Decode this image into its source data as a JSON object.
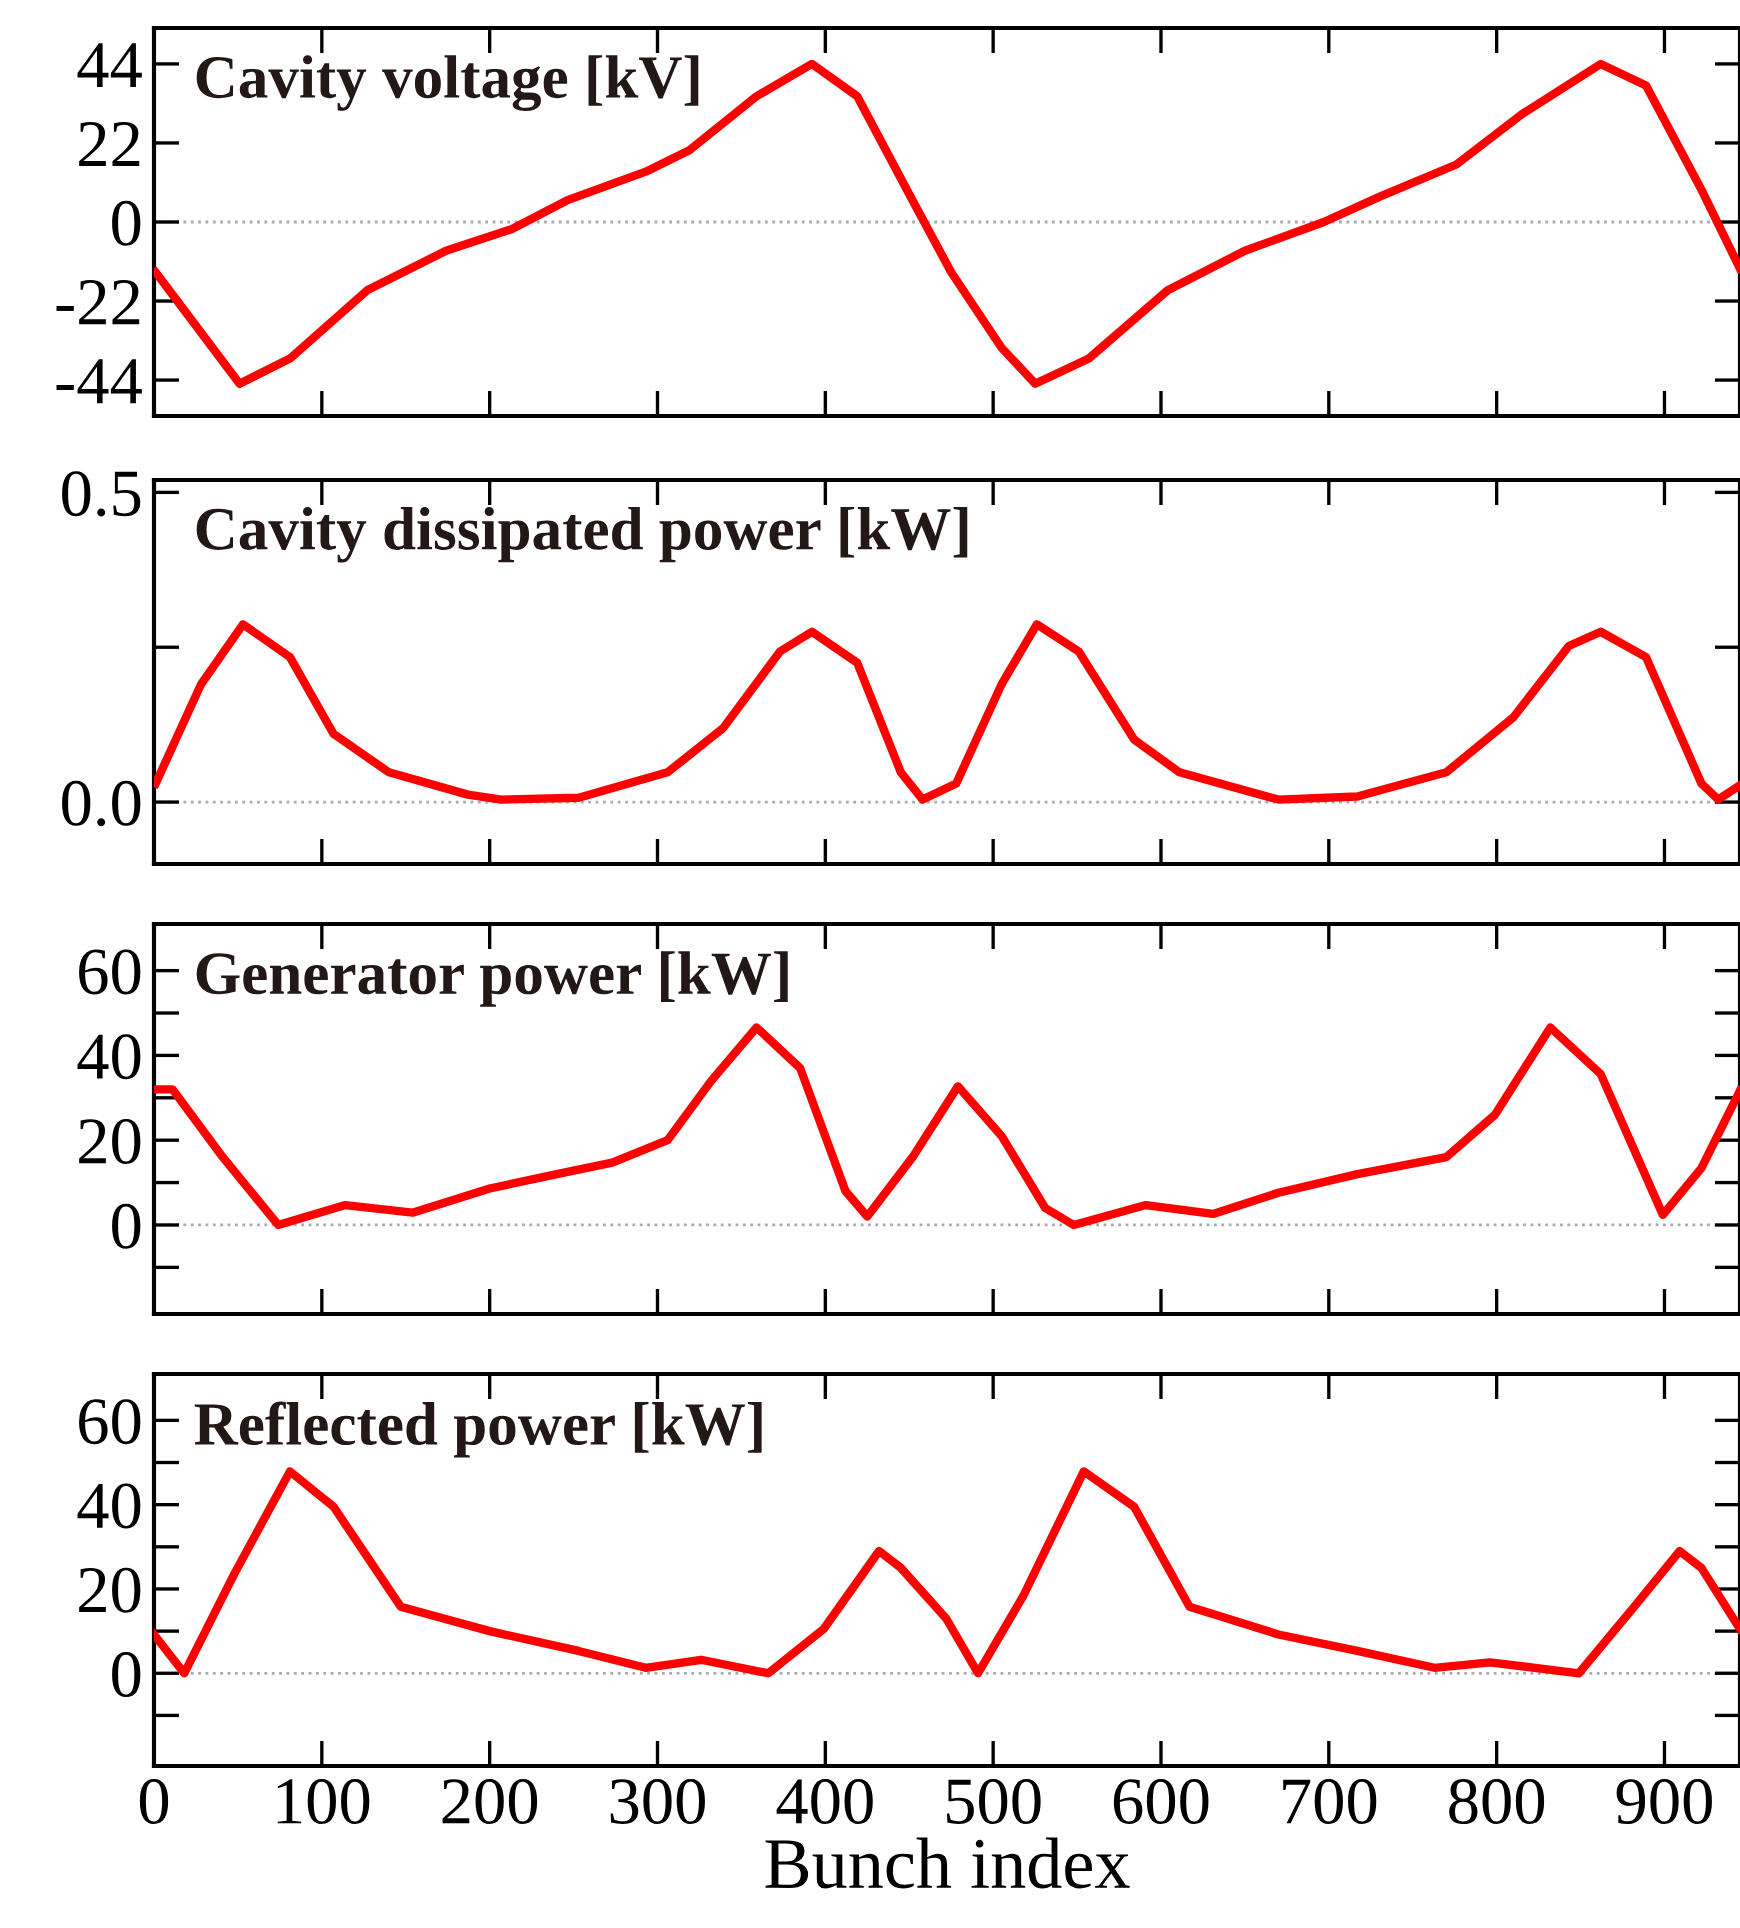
{
  "chart_data": [
    {
      "type": "line",
      "title": "Cavity voltage [kV]",
      "x": [
        1,
        51,
        81,
        127,
        174,
        213,
        246,
        293,
        319,
        359,
        392,
        419,
        452,
        475,
        505,
        525,
        557,
        604,
        650,
        697,
        730,
        776,
        815,
        862,
        889,
        922,
        945
      ],
      "series": [
        {
          "color": "#ff0000",
          "values": [
            -14,
            -45,
            -38,
            -19,
            -8,
            -2,
            6,
            14,
            20,
            35,
            44,
            35,
            6,
            -14,
            -35,
            -45,
            -38,
            -19,
            -8,
            0,
            7,
            16,
            30,
            44,
            38,
            9,
            -13
          ]
        }
      ],
      "xlim": [
        0,
        945
      ],
      "xticks": [
        0,
        100,
        200,
        300,
        400,
        500,
        600,
        700,
        800,
        900
      ],
      "ylim": [
        -54,
        54
      ],
      "yticks": [
        -44,
        -22,
        0,
        22,
        44
      ],
      "tick_labels": "y",
      "grid": false,
      "legend": false,
      "marker": "none",
      "line_style": "solid",
      "ref_lines": [
        {
          "axis": "y",
          "value": 0,
          "color": "#aaaaaa",
          "line_style": "dotted"
        }
      ]
    },
    {
      "type": "line",
      "title": "Cavity dissipated power [kW]",
      "x": [
        1,
        28,
        53,
        81,
        107,
        140,
        187,
        207,
        253,
        306,
        339,
        373,
        392,
        419,
        445,
        458,
        478,
        505,
        526,
        551,
        584,
        611,
        670,
        717,
        770,
        810,
        843,
        862,
        889,
        922,
        932,
        945
      ],
      "series": [
        {
          "color": "#ff0000",
          "values": [
            0.03,
            0.19,
            0.287,
            0.234,
            0.11,
            0.048,
            0.012,
            0.004,
            0.007,
            0.048,
            0.119,
            0.243,
            0.275,
            0.225,
            0.048,
            0.004,
            0.03,
            0.19,
            0.287,
            0.243,
            0.101,
            0.048,
            0.004,
            0.009,
            0.048,
            0.137,
            0.252,
            0.275,
            0.234,
            0.03,
            0.004,
            0.027
          ]
        }
      ],
      "xlim": [
        0,
        945
      ],
      "xticks": [
        0,
        100,
        200,
        300,
        400,
        500,
        600,
        700,
        800,
        900
      ],
      "ylim": [
        -0.1,
        0.52
      ],
      "yticks": [
        {
          "value": 0,
          "label": "0.0"
        },
        {
          "value": 0.25,
          "label": null
        },
        0.5
      ],
      "tick_labels": "y",
      "grid": false,
      "legend": false,
      "marker": "none",
      "line_style": "solid",
      "ref_lines": [
        {
          "axis": "y",
          "value": 0,
          "color": "#aaaaaa",
          "line_style": "dotted"
        }
      ]
    },
    {
      "type": "line",
      "title": "Generator power [kW]",
      "x": [
        1,
        11,
        41,
        74,
        114,
        154,
        200,
        240,
        273,
        306,
        332,
        359,
        385,
        412,
        425,
        452,
        479,
        505,
        531,
        548,
        591,
        631,
        670,
        717,
        770,
        799,
        832,
        862,
        899,
        922,
        945
      ],
      "series": [
        {
          "color": "#ff0000",
          "values": [
            32,
            32,
            16,
            0,
            4.7,
            2.9,
            8.6,
            12,
            14.7,
            20,
            34,
            46.6,
            37,
            8,
            2,
            16,
            32.7,
            21,
            4,
            0,
            4.7,
            2.6,
            7.6,
            12,
            16,
            26,
            46.6,
            35.6,
            2.4,
            13.4,
            31.7
          ]
        }
      ],
      "xlim": [
        0,
        945
      ],
      "xticks": [
        0,
        100,
        200,
        300,
        400,
        500,
        600,
        700,
        800,
        900
      ],
      "ylim": [
        -21,
        71
      ],
      "yticks": [
        {
          "value": -10,
          "label": null
        },
        0,
        {
          "value": 10,
          "label": null
        },
        20,
        {
          "value": 30,
          "label": null
        },
        40,
        {
          "value": 50,
          "label": null
        },
        60
      ],
      "tick_labels": "y",
      "grid": false,
      "legend": false,
      "marker": "none",
      "line_style": "solid",
      "ref_lines": [
        {
          "axis": "y",
          "value": 0,
          "color": "#aaaaaa",
          "line_style": "dotted"
        }
      ]
    },
    {
      "type": "line",
      "title": "Reflected power [kW]",
      "xlabel": "Bunch index",
      "x": [
        0,
        18,
        48,
        81,
        107,
        147,
        200,
        253,
        293,
        326,
        366,
        399,
        432,
        445,
        472,
        491,
        518,
        554,
        584,
        617,
        670,
        717,
        763,
        796,
        849,
        882,
        909,
        922,
        945
      ],
      "series": [
        {
          "color": "#ff0000",
          "values": [
            9.2,
            0,
            23.7,
            47.9,
            39.5,
            15.8,
            10,
            5.3,
            1.3,
            3.2,
            0,
            10.5,
            29,
            25,
            13,
            0,
            18.4,
            47.9,
            39.5,
            15.8,
            9.2,
            5.3,
            1.3,
            2.6,
            0,
            15.8,
            29,
            25,
            10.5
          ]
        }
      ],
      "xlim": [
        0,
        945
      ],
      "xticks": [
        0,
        100,
        200,
        300,
        400,
        500,
        600,
        700,
        800,
        900
      ],
      "ylim": [
        -22,
        71
      ],
      "yticks": [
        {
          "value": -10,
          "label": null
        },
        0,
        {
          "value": 10,
          "label": null
        },
        20,
        {
          "value": 30,
          "label": null
        },
        40,
        {
          "value": 50,
          "label": null
        },
        60
      ],
      "grid": false,
      "legend": false,
      "marker": "none",
      "line_style": "solid",
      "ref_lines": [
        {
          "axis": "y",
          "value": 0,
          "color": "#aaaaaa",
          "line_style": "dotted"
        }
      ]
    }
  ]
}
